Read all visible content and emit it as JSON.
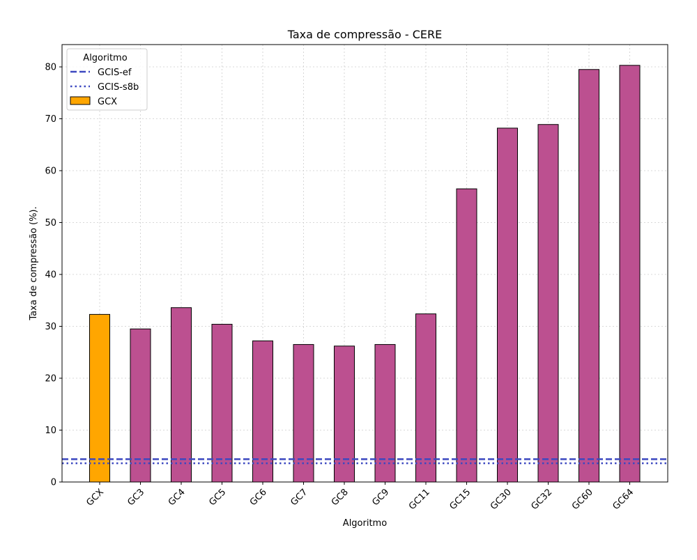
{
  "chart_data": {
    "type": "bar",
    "title": "Taxa de compressão -  CERE",
    "xlabel": "Algoritmo",
    "ylabel": "Taxa de compressão (%).",
    "ylim": [
      0,
      84.3
    ],
    "yticks": [
      0,
      10,
      20,
      30,
      40,
      50,
      60,
      70,
      80
    ],
    "grid": true,
    "categories": [
      "GCX",
      "GC3",
      "GC4",
      "GC5",
      "GC6",
      "GC7",
      "GC8",
      "GC9",
      "GC11",
      "GC15",
      "GC30",
      "GC32",
      "GC60",
      "GC64"
    ],
    "values": [
      32.3,
      29.5,
      33.6,
      30.4,
      27.2,
      26.5,
      26.2,
      26.5,
      32.4,
      56.5,
      68.2,
      68.9,
      79.5,
      80.3
    ],
    "highlight_category": "GCX",
    "colors": {
      "bar": "#bc5090",
      "highlight": "#ffa600",
      "line": "#3c48c0"
    },
    "reference_lines": [
      {
        "name": "GCIS-ef",
        "value": 4.4,
        "style": "dashed"
      },
      {
        "name": "GCIS-s8b",
        "value": 3.6,
        "style": "dotted"
      }
    ],
    "legend": {
      "title": "Algoritmo",
      "position": "top-left",
      "entries": [
        "GCIS-ef",
        "GCIS-s8b",
        "GCX"
      ]
    }
  }
}
